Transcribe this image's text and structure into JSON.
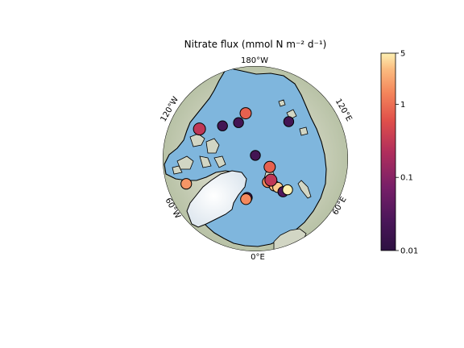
{
  "chart_data": {
    "type": "scatter",
    "title": "Nitrate flux (mmol N m⁻² d⁻¹)",
    "projection": "north-polar-stereographic",
    "longitude_labels": [
      "180°W",
      "120°W",
      "120°E",
      "60°W",
      "60°E",
      "0°E"
    ],
    "colorbar": {
      "scale": "log",
      "cmap": "magma-like",
      "range": [
        0.01,
        5
      ],
      "ticks": [
        {
          "value": 5,
          "label": "5"
        },
        {
          "value": 1,
          "label": "1"
        },
        {
          "value": 0.1,
          "label": "0.1"
        },
        {
          "value": 0.01,
          "label": "0.01"
        }
      ]
    },
    "stations": [
      {
        "lon": -155,
        "lat": 78,
        "value": 0.02
      },
      {
        "lon": -168,
        "lat": 76,
        "value": 0.8
      },
      {
        "lon": -135,
        "lat": 76,
        "value": 0.02
      },
      {
        "lon": -118,
        "lat": 71,
        "value": 0.3
      },
      {
        "lon": 138,
        "lat": 75,
        "value": 0.02
      },
      {
        "lon": 180,
        "lat": 89,
        "value": 0.02
      },
      {
        "lon": 60,
        "lat": 85,
        "value": 0.8
      },
      {
        "lon": -70,
        "lat": 68,
        "value": 1.8
      },
      {
        "lon": -12,
        "lat": 78,
        "value": 0.03
      },
      {
        "lon": -13,
        "lat": 77.5,
        "value": 1.5
      },
      {
        "lon": 28,
        "lat": 82,
        "value": 1.5
      },
      {
        "lon": 35,
        "lat": 80,
        "value": 3
      },
      {
        "lon": 38,
        "lat": 79,
        "value": 3.5
      },
      {
        "lon": 36,
        "lat": 82,
        "value": 0.3
      },
      {
        "lon": 40,
        "lat": 77,
        "value": 0.03
      },
      {
        "lon": 46,
        "lat": 76.5,
        "value": 5
      }
    ]
  }
}
